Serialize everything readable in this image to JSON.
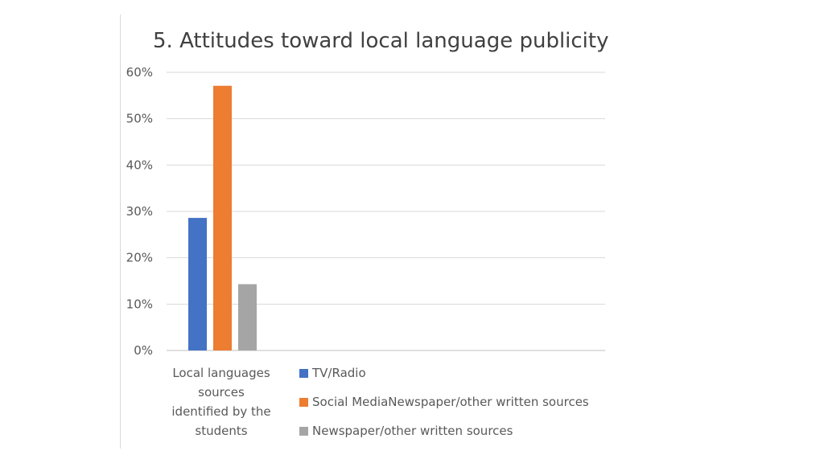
{
  "chart_data": {
    "type": "bar",
    "title": "5. Attitudes toward local language publicity",
    "categories": [
      "Local languages sources identified by the students"
    ],
    "category_lines": [
      "Local languages",
      "sources",
      "identified by the",
      "students"
    ],
    "series": [
      {
        "name": "TV/Radio",
        "values": [
          0.286
        ],
        "color": "#4472c4"
      },
      {
        "name": "Social MediaNewspaper/other written sources",
        "values": [
          0.571
        ],
        "color": "#ed7d31"
      },
      {
        "name": "Newspaper/other written sources",
        "values": [
          0.143
        ],
        "color": "#a5a5a5"
      }
    ],
    "yticks": [
      "0%",
      "10%",
      "20%",
      "30%",
      "40%",
      "50%",
      "60%"
    ],
    "ylim": [
      0,
      0.6
    ],
    "grid": true,
    "legend_position": "bottom-right"
  }
}
